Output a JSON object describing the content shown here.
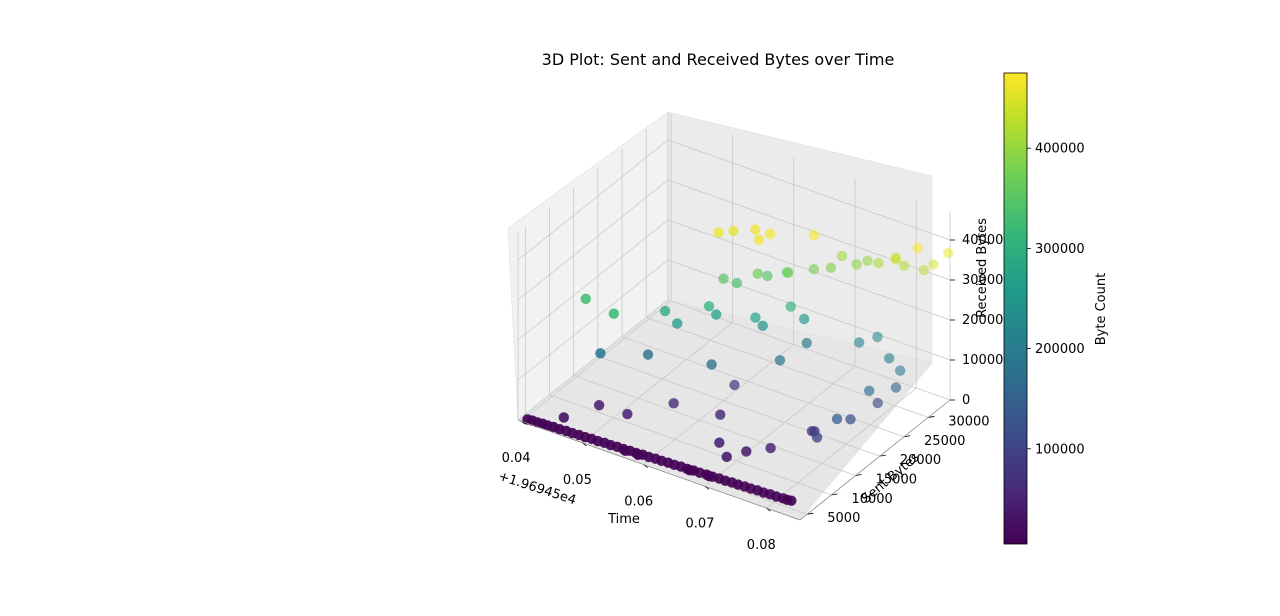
{
  "chart_data": {
    "type": "scatter",
    "title": "3D Plot: Sent and Received Bytes over Time",
    "xlabel": "Time",
    "ylabel": "Sent Bytes",
    "zlabel": "Received Bytes",
    "x_offset_label": "+1.96945e4",
    "x_ticks": [
      "0.04",
      "0.05",
      "0.06",
      "0.07",
      "0.08"
    ],
    "y_ticks": [
      "5000",
      "10000",
      "15000",
      "20000",
      "25000",
      "30000"
    ],
    "z_ticks": [
      "0",
      "100000",
      "200000",
      "300000",
      "400000"
    ],
    "colorbar": {
      "label": "Byte Count",
      "colormap": "viridis",
      "ticks": [
        "100000",
        "200000",
        "300000",
        "400000"
      ],
      "range": [
        5000,
        475000
      ]
    },
    "grid": true,
    "marker_color_scale": [
      "#440154",
      "#482878",
      "#3e4989",
      "#31688e",
      "#26828e",
      "#1f9e89",
      "#35b779",
      "#6ece58",
      "#b5de2b",
      "#fde725"
    ],
    "points_note_free": true,
    "points": [
      {
        "x": 0.0405,
        "y": 4200,
        "z": 0,
        "c": 8000
      },
      {
        "x": 0.0412,
        "y": 4300,
        "z": 0,
        "c": 8000
      },
      {
        "x": 0.042,
        "y": 4300,
        "z": 0,
        "c": 8000
      },
      {
        "x": 0.0428,
        "y": 4400,
        "z": 0,
        "c": 8000
      },
      {
        "x": 0.0436,
        "y": 4400,
        "z": 0,
        "c": 8000
      },
      {
        "x": 0.0445,
        "y": 4500,
        "z": 0,
        "c": 8000
      },
      {
        "x": 0.0455,
        "y": 4500,
        "z": 0,
        "c": 8000
      },
      {
        "x": 0.0465,
        "y": 4600,
        "z": 0,
        "c": 8000
      },
      {
        "x": 0.0475,
        "y": 4600,
        "z": 0,
        "c": 8000
      },
      {
        "x": 0.0485,
        "y": 4700,
        "z": 0,
        "c": 8000
      },
      {
        "x": 0.0495,
        "y": 4700,
        "z": 0,
        "c": 8000
      },
      {
        "x": 0.0505,
        "y": 4800,
        "z": 0,
        "c": 8000
      },
      {
        "x": 0.0515,
        "y": 4800,
        "z": 0,
        "c": 8000
      },
      {
        "x": 0.0525,
        "y": 4900,
        "z": 0,
        "c": 8000
      },
      {
        "x": 0.0535,
        "y": 4900,
        "z": 0,
        "c": 8000
      },
      {
        "x": 0.0545,
        "y": 5000,
        "z": 0,
        "c": 8000
      },
      {
        "x": 0.0555,
        "y": 5000,
        "z": 0,
        "c": 8000
      },
      {
        "x": 0.0565,
        "y": 5100,
        "z": 0,
        "c": 8000
      },
      {
        "x": 0.0575,
        "y": 5100,
        "z": 0,
        "c": 8000
      },
      {
        "x": 0.0585,
        "y": 5200,
        "z": 0,
        "c": 8000
      },
      {
        "x": 0.0595,
        "y": 5200,
        "z": 0,
        "c": 8000
      },
      {
        "x": 0.0605,
        "y": 5300,
        "z": 0,
        "c": 8000
      },
      {
        "x": 0.0615,
        "y": 5300,
        "z": 0,
        "c": 8000
      },
      {
        "x": 0.0625,
        "y": 5400,
        "z": 0,
        "c": 8000
      },
      {
        "x": 0.0635,
        "y": 5400,
        "z": 0,
        "c": 8000
      },
      {
        "x": 0.0645,
        "y": 5500,
        "z": 0,
        "c": 8000
      },
      {
        "x": 0.0655,
        "y": 5500,
        "z": 0,
        "c": 8000
      },
      {
        "x": 0.0665,
        "y": 5600,
        "z": 0,
        "c": 8000
      },
      {
        "x": 0.0675,
        "y": 5600,
        "z": 0,
        "c": 8000
      },
      {
        "x": 0.0685,
        "y": 5700,
        "z": 0,
        "c": 8000
      },
      {
        "x": 0.0695,
        "y": 5700,
        "z": 0,
        "c": 8000
      },
      {
        "x": 0.0705,
        "y": 5800,
        "z": 0,
        "c": 8000
      },
      {
        "x": 0.0715,
        "y": 5800,
        "z": 0,
        "c": 8000
      },
      {
        "x": 0.0725,
        "y": 5900,
        "z": 0,
        "c": 8000
      },
      {
        "x": 0.0735,
        "y": 5900,
        "z": 0,
        "c": 8000
      },
      {
        "x": 0.0745,
        "y": 6000,
        "z": 0,
        "c": 8000
      },
      {
        "x": 0.0755,
        "y": 6000,
        "z": 0,
        "c": 8000
      },
      {
        "x": 0.0765,
        "y": 6100,
        "z": 0,
        "c": 8000
      },
      {
        "x": 0.0775,
        "y": 6100,
        "z": 0,
        "c": 8000
      },
      {
        "x": 0.0785,
        "y": 6200,
        "z": 0,
        "c": 8000
      },
      {
        "x": 0.0795,
        "y": 6200,
        "z": 0,
        "c": 8000
      },
      {
        "x": 0.0805,
        "y": 6300,
        "z": 0,
        "c": 8000
      },
      {
        "x": 0.0812,
        "y": 6300,
        "z": 0,
        "c": 8000
      },
      {
        "x": 0.0818,
        "y": 6400,
        "z": 0,
        "c": 8000
      },
      {
        "x": 0.056,
        "y": 4800,
        "z": 0,
        "c": 8000
      },
      {
        "x": 0.058,
        "y": 4900,
        "z": 0,
        "c": 8000
      },
      {
        "x": 0.066,
        "y": 5400,
        "z": 0,
        "c": 8000
      },
      {
        "x": 0.069,
        "y": 5600,
        "z": 0,
        "c": 8000
      },
      {
        "x": 0.045,
        "y": 6000,
        "z": 12000,
        "c": 30000
      },
      {
        "x": 0.048,
        "y": 9500,
        "z": 25000,
        "c": 40000
      },
      {
        "x": 0.053,
        "y": 9000,
        "z": 35000,
        "c": 50000
      },
      {
        "x": 0.057,
        "y": 13500,
        "z": 40000,
        "c": 60000
      },
      {
        "x": 0.061,
        "y": 21000,
        "z": 35000,
        "c": 70000
      },
      {
        "x": 0.065,
        "y": 13000,
        "z": 60000,
        "c": 55000
      },
      {
        "x": 0.068,
        "y": 9000,
        "z": 45000,
        "c": 45000
      },
      {
        "x": 0.07,
        "y": 8000,
        "z": 30000,
        "c": 35000
      },
      {
        "x": 0.072,
        "y": 9500,
        "z": 40000,
        "c": 40000
      },
      {
        "x": 0.074,
        "y": 12000,
        "z": 35000,
        "c": 50000
      },
      {
        "x": 0.076,
        "y": 18000,
        "z": 30000,
        "c": 60000
      },
      {
        "x": 0.078,
        "y": 16000,
        "z": 60000,
        "c": 80000
      },
      {
        "x": 0.08,
        "y": 14000,
        "z": 75000,
        "c": 110000
      },
      {
        "x": 0.0815,
        "y": 19000,
        "z": 80000,
        "c": 130000
      },
      {
        "x": 0.082,
        "y": 24000,
        "z": 75000,
        "c": 120000
      },
      {
        "x": 0.0805,
        "y": 17500,
        "z": 90000,
        "c": 145000
      },
      {
        "x": 0.081,
        "y": 23500,
        "z": 105000,
        "c": 170000
      },
      {
        "x": 0.083,
        "y": 26500,
        "z": 95000,
        "c": 155000
      },
      {
        "x": 0.0825,
        "y": 28000,
        "z": 120000,
        "c": 190000
      },
      {
        "x": 0.0815,
        "y": 27000,
        "z": 155000,
        "c": 210000
      },
      {
        "x": 0.078,
        "y": 29000,
        "z": 170000,
        "c": 225000
      },
      {
        "x": 0.077,
        "y": 26500,
        "z": 175000,
        "c": 215000
      },
      {
        "x": 0.072,
        "y": 22000,
        "z": 190000,
        "c": 200000
      },
      {
        "x": 0.07,
        "y": 19000,
        "z": 165000,
        "c": 190000
      },
      {
        "x": 0.062,
        "y": 15000,
        "z": 150000,
        "c": 180000
      },
      {
        "x": 0.054,
        "y": 12000,
        "z": 160000,
        "c": 185000
      },
      {
        "x": 0.049,
        "y": 8500,
        "z": 170000,
        "c": 190000
      },
      {
        "x": 0.066,
        "y": 20500,
        "z": 215000,
        "c": 240000
      },
      {
        "x": 0.07,
        "y": 24000,
        "z": 220000,
        "c": 250000
      },
      {
        "x": 0.056,
        "y": 15500,
        "z": 215000,
        "c": 260000
      },
      {
        "x": 0.06,
        "y": 18500,
        "z": 230000,
        "c": 270000
      },
      {
        "x": 0.066,
        "y": 19000,
        "z": 250000,
        "c": 280000
      },
      {
        "x": 0.056,
        "y": 13000,
        "z": 270000,
        "c": 300000
      },
      {
        "x": 0.06,
        "y": 17000,
        "z": 265000,
        "c": 305000
      },
      {
        "x": 0.069,
        "y": 22500,
        "z": 260000,
        "c": 310000
      },
      {
        "x": 0.05,
        "y": 10000,
        "z": 260000,
        "c": 320000
      },
      {
        "x": 0.047,
        "y": 8000,
        "z": 300000,
        "c": 330000
      },
      {
        "x": 0.061,
        "y": 21500,
        "z": 285000,
        "c": 335000
      },
      {
        "x": 0.064,
        "y": 24000,
        "z": 295000,
        "c": 345000
      },
      {
        "x": 0.06,
        "y": 20000,
        "z": 305000,
        "c": 350000
      },
      {
        "x": 0.066,
        "y": 25500,
        "z": 300000,
        "c": 360000
      },
      {
        "x": 0.064,
        "y": 22000,
        "z": 320000,
        "c": 365000
      },
      {
        "x": 0.067,
        "y": 24500,
        "z": 315000,
        "c": 370000
      },
      {
        "x": 0.07,
        "y": 26000,
        "z": 325000,
        "c": 380000
      },
      {
        "x": 0.072,
        "y": 27000,
        "z": 330000,
        "c": 385000
      },
      {
        "x": 0.075,
        "y": 28500,
        "z": 340000,
        "c": 395000
      },
      {
        "x": 0.076,
        "y": 29500,
        "z": 345000,
        "c": 400000
      },
      {
        "x": 0.073,
        "y": 28000,
        "z": 355000,
        "c": 405000
      },
      {
        "x": 0.077,
        "y": 30500,
        "z": 335000,
        "c": 410000
      },
      {
        "x": 0.08,
        "y": 32000,
        "z": 330000,
        "c": 420000
      },
      {
        "x": 0.082,
        "y": 33500,
        "z": 315000,
        "c": 425000
      },
      {
        "x": 0.079,
        "y": 31500,
        "z": 350000,
        "c": 430000
      },
      {
        "x": 0.081,
        "y": 29000,
        "z": 380000,
        "c": 440000
      },
      {
        "x": 0.062,
        "y": 19500,
        "z": 440000,
        "c": 455000
      },
      {
        "x": 0.06,
        "y": 19000,
        "z": 430000,
        "c": 460000
      },
      {
        "x": 0.064,
        "y": 21500,
        "z": 435000,
        "c": 465000
      },
      {
        "x": 0.066,
        "y": 22000,
        "z": 430000,
        "c": 470000
      },
      {
        "x": 0.065,
        "y": 21000,
        "z": 420000,
        "c": 468000
      },
      {
        "x": 0.07,
        "y": 26000,
        "z": 410000,
        "c": 472000
      },
      {
        "x": 0.083,
        "y": 31000,
        "z": 400000,
        "c": 474000
      },
      {
        "x": 0.086,
        "y": 33500,
        "z": 380000,
        "c": 462000
      },
      {
        "x": 0.084,
        "y": 33000,
        "z": 345000,
        "c": 445000
      }
    ]
  }
}
